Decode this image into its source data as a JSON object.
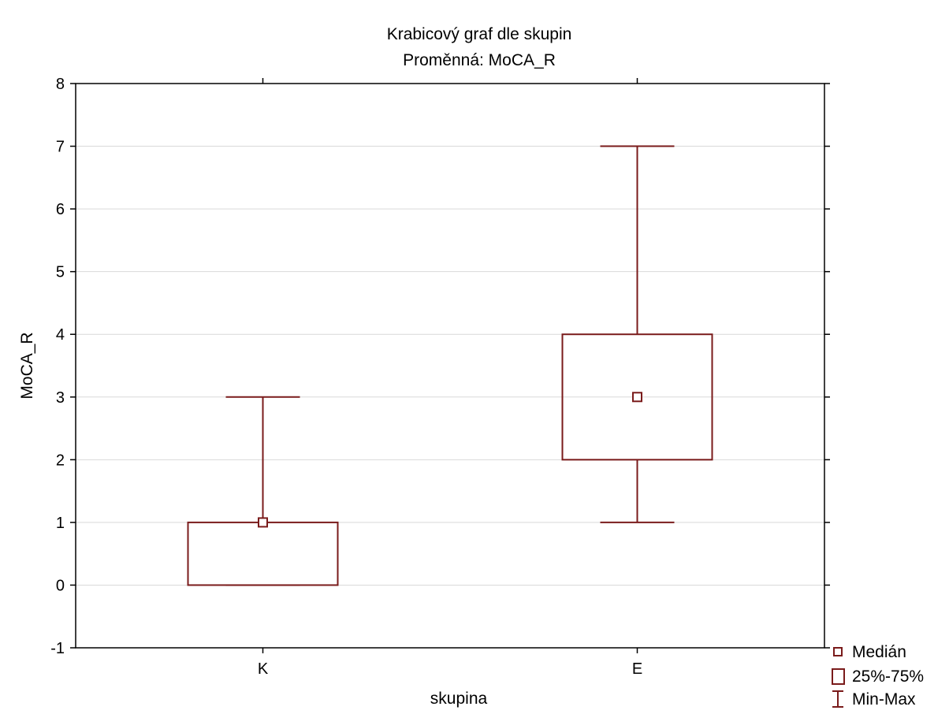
{
  "chart_data": {
    "type": "box",
    "title": "Krabicový graf dle skupin",
    "subtitle": "Proměnná: MoCA_R",
    "xlabel": "skupina",
    "ylabel": "MoCA_R",
    "ylim": [
      -1,
      8
    ],
    "yticks": [
      "-1",
      "0",
      "1",
      "2",
      "3",
      "4",
      "5",
      "6",
      "7",
      "8"
    ],
    "grid": "horizontal",
    "categories": [
      "K",
      "E"
    ],
    "boxes": [
      {
        "category": "K",
        "min": 0,
        "q1": 0,
        "median": 1,
        "q3": 1,
        "max": 3
      },
      {
        "category": "E",
        "min": 1,
        "q1": 2,
        "median": 3,
        "q3": 4,
        "max": 7
      }
    ],
    "legend": {
      "position": "bottom-right",
      "items": [
        {
          "label": "Medián",
          "symbol": "median-square"
        },
        {
          "label": "25%-75%",
          "symbol": "box-rect"
        },
        {
          "label": "Min-Max",
          "symbol": "whisker"
        }
      ]
    },
    "colors": {
      "box": "#7a1b1b",
      "grid": "#d9d9d9",
      "axis": "#000000"
    }
  }
}
